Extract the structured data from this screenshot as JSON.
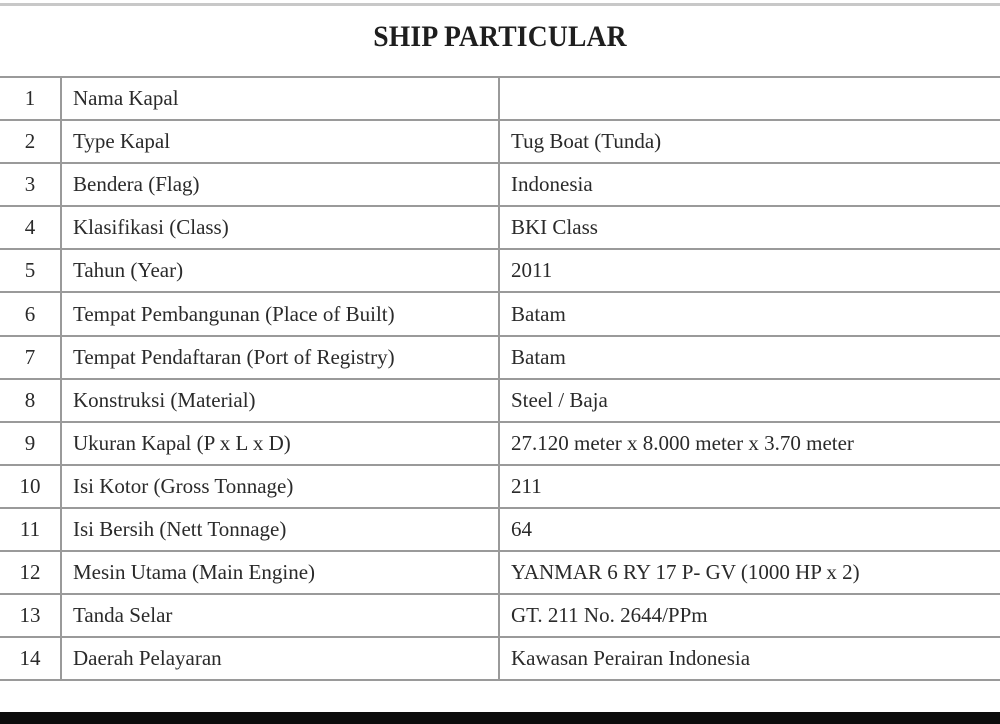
{
  "title": "SHIP PARTICULAR",
  "rows": [
    {
      "no": "1",
      "label": "Nama Kapal",
      "value": ""
    },
    {
      "no": "2",
      "label": "Type Kapal",
      "value": "Tug Boat (Tunda)"
    },
    {
      "no": "3",
      "label": "Bendera (Flag)",
      "value": "Indonesia"
    },
    {
      "no": "4",
      "label": "Klasifikasi (Class)",
      "value": "BKI Class"
    },
    {
      "no": "5",
      "label": "Tahun (Year)",
      "value": "2011"
    },
    {
      "no": "6",
      "label": "Tempat Pembangunan (Place of Built)",
      "value": "Batam"
    },
    {
      "no": "7",
      "label": "Tempat Pendaftaran (Port of Registry)",
      "value": "Batam"
    },
    {
      "no": "8",
      "label": "Konstruksi (Material)",
      "value": "Steel / Baja"
    },
    {
      "no": "9",
      "label": "Ukuran Kapal (P x L x D)",
      "value": "27.120 meter  x  8.000 meter  x  3.70 meter"
    },
    {
      "no": "10",
      "label": "Isi Kotor (Gross Tonnage)",
      "value": "211"
    },
    {
      "no": "11",
      "label": "Isi Bersih (Nett Tonnage)",
      "value": "64"
    },
    {
      "no": "12",
      "label": "Mesin Utama (Main Engine)",
      "value": "YANMAR 6 RY 17 P- GV (1000 HP x 2)"
    },
    {
      "no": "13",
      "label": "Tanda Selar",
      "value": "GT. 211  No. 2644/PPm"
    },
    {
      "no": "14",
      "label": "Daerah Pelayaran",
      "value": "Kawasan Perairan Indonesia"
    }
  ]
}
